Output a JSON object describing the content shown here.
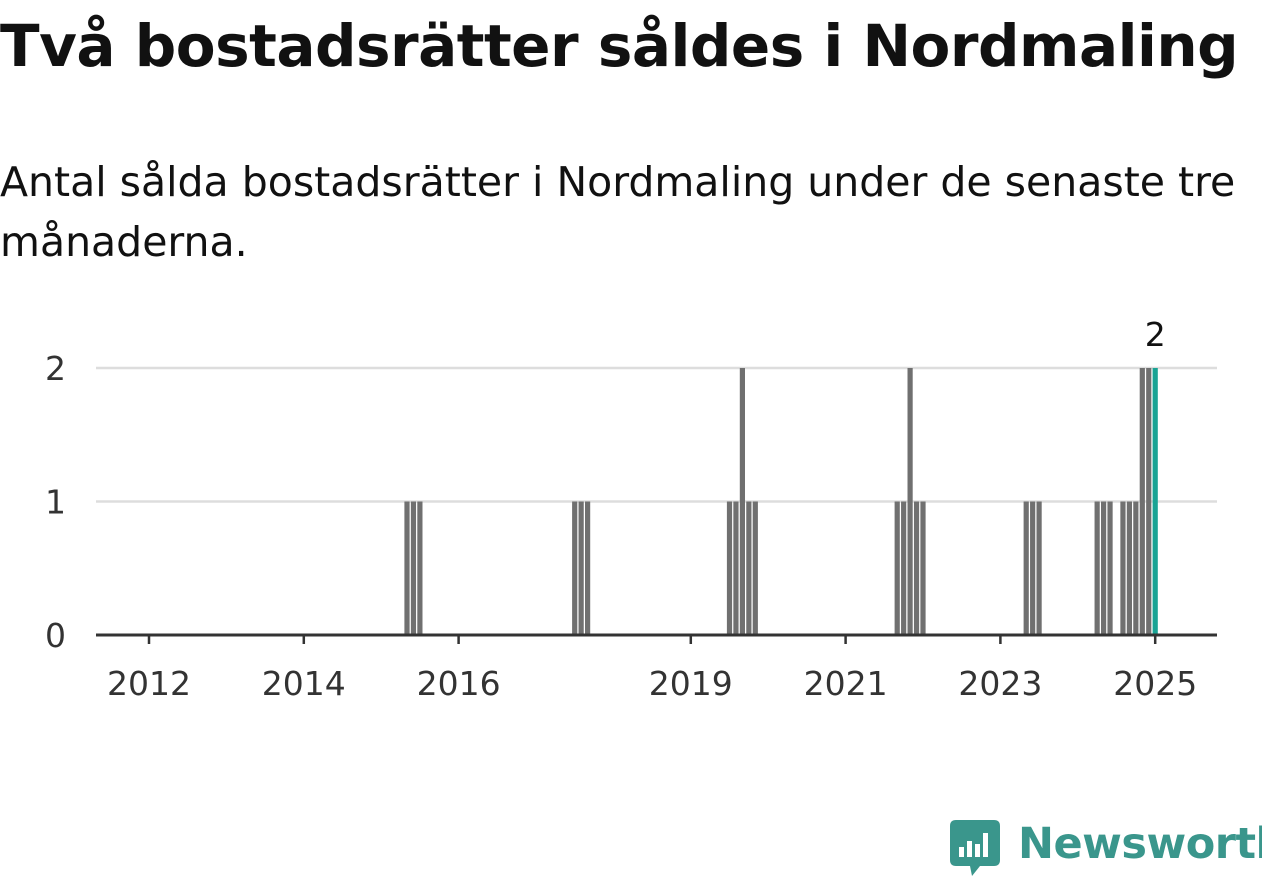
{
  "title": "Två bostadsrätter såldes i Nordmaling",
  "subtitle": "Antal sålda bostadsrätter i Nordmaling under de senaste tre månaderna.",
  "brand": {
    "name": "Newsworthy",
    "icon": "newsworthy-bar-chart-icon",
    "color": "#3a968c"
  },
  "colors": {
    "bar": "#707070",
    "highlight": "#1aa394",
    "grid": "#dddddd",
    "axis": "#333333"
  },
  "chart_data": {
    "type": "bar",
    "xlabel": "",
    "ylabel": "",
    "ylim": [
      0,
      2
    ],
    "yticks": [
      "0",
      "1",
      "2"
    ],
    "xticks": [
      "2012",
      "2014",
      "2016",
      "2019",
      "2021",
      "2023",
      "2025"
    ],
    "xlim": [
      "2011-07",
      "2025-09"
    ],
    "grid": true,
    "annotation": {
      "x": "2025-01",
      "text": "2"
    },
    "series": [
      {
        "values": [
          {
            "x": "2015-05",
            "y": 1
          },
          {
            "x": "2015-06",
            "y": 1
          },
          {
            "x": "2015-07",
            "y": 1
          },
          {
            "x": "2017-07",
            "y": 1
          },
          {
            "x": "2017-08",
            "y": 1
          },
          {
            "x": "2017-09",
            "y": 1
          },
          {
            "x": "2019-07",
            "y": 1
          },
          {
            "x": "2019-08",
            "y": 1
          },
          {
            "x": "2019-09",
            "y": 2
          },
          {
            "x": "2019-10",
            "y": 1
          },
          {
            "x": "2019-11",
            "y": 1
          },
          {
            "x": "2021-09",
            "y": 1
          },
          {
            "x": "2021-10",
            "y": 1
          },
          {
            "x": "2021-11",
            "y": 2
          },
          {
            "x": "2021-12",
            "y": 1
          },
          {
            "x": "2022-01",
            "y": 1
          },
          {
            "x": "2023-05",
            "y": 1
          },
          {
            "x": "2023-06",
            "y": 1
          },
          {
            "x": "2023-07",
            "y": 1
          },
          {
            "x": "2024-04",
            "y": 1
          },
          {
            "x": "2024-05",
            "y": 1
          },
          {
            "x": "2024-06",
            "y": 1
          },
          {
            "x": "2024-08",
            "y": 1
          },
          {
            "x": "2024-09",
            "y": 1
          },
          {
            "x": "2024-10",
            "y": 1
          },
          {
            "x": "2024-11",
            "y": 2
          },
          {
            "x": "2024-12",
            "y": 2
          },
          {
            "x": "2025-01",
            "y": 2,
            "highlight": true
          }
        ]
      }
    ]
  }
}
